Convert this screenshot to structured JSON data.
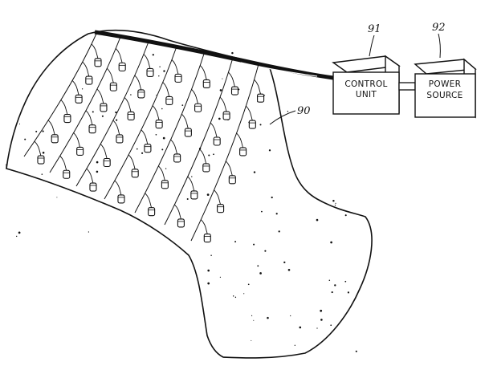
{
  "labels": {
    "control_unit": {
      "ref": "91",
      "line1": "CONTROL",
      "line2": "UNIT"
    },
    "power_source": {
      "ref": "92",
      "line1": "POWER",
      "line2": "SOURCE"
    },
    "sensor_ref": "90"
  },
  "ink": "#111111"
}
